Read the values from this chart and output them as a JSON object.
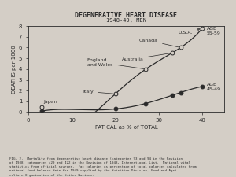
{
  "title": "DEGENERATIVE HEART DISEASE",
  "subtitle": "1948-49, MEN",
  "xlabel": "FAT CAL as % of TOTAL",
  "ylabel": "DEATHS per 1000",
  "xlim": [
    0,
    45
  ],
  "ylim": [
    0,
    8
  ],
  "xticks": [
    0,
    10,
    20,
    30,
    40
  ],
  "yticks": [
    0,
    1,
    2,
    3,
    4,
    5,
    6,
    7,
    8
  ],
  "curve_55_59": {
    "countries": [
      "Japan",
      "Italy",
      "England\nand Wales",
      "Australia",
      "Canada",
      "U.S.A."
    ],
    "x": [
      3,
      20,
      27,
      33,
      35,
      40
    ],
    "y": [
      0.5,
      1.7,
      4.0,
      5.5,
      6.0,
      7.8
    ]
  },
  "curve_45_49": {
    "countries": [
      "Japan",
      "Italy",
      "England\nand Wales",
      "Australia",
      "Canada",
      "U.S.A."
    ],
    "x": [
      3,
      20,
      27,
      33,
      35,
      40
    ],
    "y": [
      0.1,
      0.3,
      0.8,
      1.6,
      1.8,
      2.4
    ]
  },
  "caption": "FIG. 2.  Mortality from degenerative heart disease (categories 93 and 94 in the Revision\nof 1938, categories 420 and 422 in the Revision of 1948, International List.  National vital\nstatistics from official sources.  Fat calories as percentage of total calories calculated from\nnational food balance data for 1949 supplied by the Nutrition Division, Food and Agri-\nculture Organization of the United Nations.",
  "bg_color": "#d4cec6",
  "line_color": "#2a2a2a",
  "marker_open": "#d4cec6",
  "marker_filled": "#2a2a2a"
}
